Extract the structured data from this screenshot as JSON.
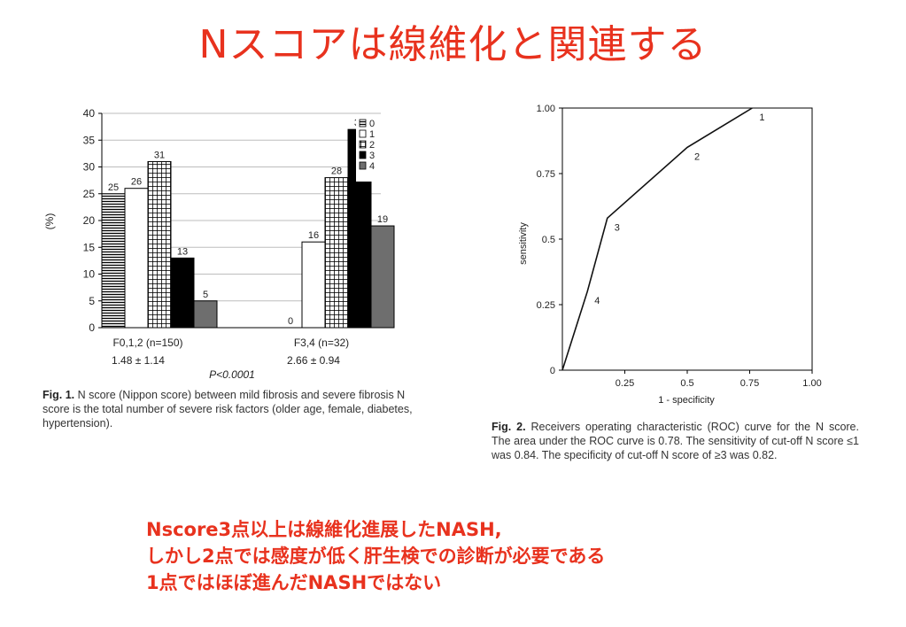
{
  "slide": {
    "title": "Nスコアは線維化と関連する",
    "notes": [
      "Nscore3点以上は線維化進展したNASH,",
      "しかし2点では感度が低く肝生検での診断が必要である",
      "1点ではほぼ進んだNASHではない"
    ]
  },
  "fig1": {
    "caption_label": "Fig. 1.",
    "caption_text": " N score (Nippon score) between mild fibrosis and severe fibrosis N score is the total number of severe risk factors (older age, female, diabetes, hypertension).",
    "group_labels": [
      "F0,1,2 (n=150)",
      "F3,4 (n=32)"
    ],
    "group_stats": [
      "1.48 ± 1.14",
      "2.66 ± 0.94"
    ],
    "p_value": "P<0.0001"
  },
  "fig2": {
    "caption_label": "Fig. 2.",
    "caption_text": " Receivers operating characteristic (ROC) curve for the N score. The area under the ROC curve is 0.78. The sensitivity of cut-off N score ≤1 was 0.84. The specificity of cut-off N score of ≥3 was 0.82."
  },
  "colors": {
    "accent": "#e8321e",
    "black_bar": "#000000",
    "gray_bar": "#6e6e6e"
  },
  "chart_data": [
    {
      "type": "bar",
      "categories": [
        "F0,1,2 (n=150)",
        "F3,4 (n=32)"
      ],
      "series": [
        {
          "name": "0",
          "values": [
            25,
            0
          ]
        },
        {
          "name": "1",
          "values": [
            26,
            16
          ]
        },
        {
          "name": "2",
          "values": [
            31,
            28
          ]
        },
        {
          "name": "3",
          "values": [
            13,
            37
          ]
        },
        {
          "name": "4",
          "values": [
            5,
            19
          ]
        }
      ],
      "ylabel": "(%)",
      "ylim": [
        0,
        40
      ],
      "yticks": [
        0,
        5,
        10,
        15,
        20,
        25,
        30,
        35,
        40
      ],
      "grid": true,
      "legend": "top-right"
    },
    {
      "type": "line",
      "xlabel": "1 - specificity",
      "ylabel": "sensitivity",
      "xlim": [
        0,
        1
      ],
      "ylim": [
        0,
        1
      ],
      "xticks": [
        "0.25",
        "0.5",
        "0.75",
        "1.00"
      ],
      "yticks": [
        "0",
        "0.25",
        "0.5",
        "0.75",
        "1.00"
      ],
      "x": [
        0,
        0.1,
        0.18,
        0.5,
        0.76
      ],
      "y": [
        0,
        0.3,
        0.58,
        0.85,
        1.0
      ],
      "point_labels": [
        "",
        "4",
        "3",
        "2",
        "1"
      ],
      "grid": false
    }
  ]
}
